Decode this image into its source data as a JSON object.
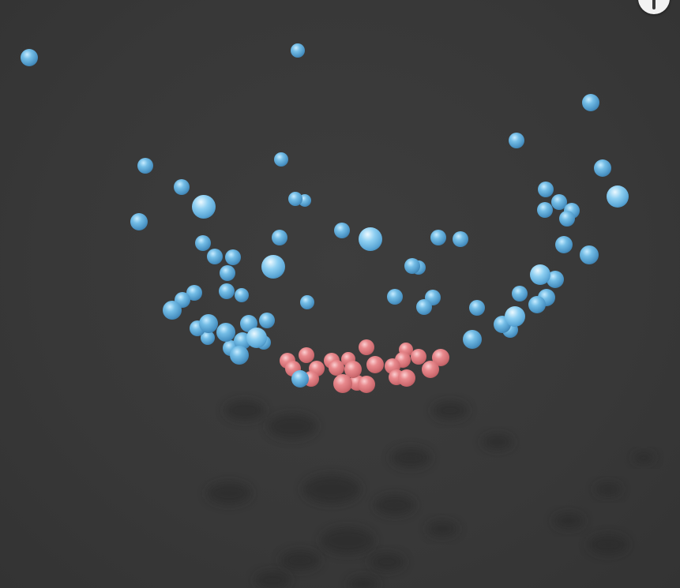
{
  "colors": {
    "background": "#3a3a3a",
    "group_a": "#6ab4e0",
    "group_b": "#e8888c"
  },
  "info_button": {
    "icon": "info-icon"
  },
  "spheres": {
    "blue": [
      [
        37,
        73,
        11
      ],
      [
        377,
        64,
        9
      ],
      [
        748,
        130,
        11
      ],
      [
        184,
        210,
        10
      ],
      [
        654,
        178,
        10
      ],
      [
        356,
        202,
        9
      ],
      [
        230,
        237,
        10
      ],
      [
        763,
        213,
        11
      ],
      [
        258,
        262,
        15
      ],
      [
        374,
        252,
        9
      ],
      [
        386,
        254,
        8
      ],
      [
        691,
        240,
        10
      ],
      [
        708,
        256,
        10
      ],
      [
        724,
        267,
        10
      ],
      [
        718,
        277,
        10
      ],
      [
        690,
        266,
        10
      ],
      [
        782,
        249,
        14
      ],
      [
        176,
        281,
        11
      ],
      [
        257,
        308,
        10
      ],
      [
        272,
        325,
        10
      ],
      [
        295,
        326,
        10
      ],
      [
        354,
        301,
        10
      ],
      [
        433,
        292,
        10
      ],
      [
        469,
        303,
        15
      ],
      [
        555,
        301,
        10
      ],
      [
        583,
        303,
        10
      ],
      [
        714,
        310,
        11
      ],
      [
        746,
        323,
        12
      ],
      [
        346,
        338,
        15
      ],
      [
        288,
        346,
        10
      ],
      [
        522,
        337,
        10
      ],
      [
        530,
        339,
        9
      ],
      [
        684,
        348,
        13
      ],
      [
        703,
        354,
        11
      ],
      [
        246,
        371,
        10
      ],
      [
        231,
        380,
        10
      ],
      [
        287,
        369,
        10
      ],
      [
        306,
        374,
        9
      ],
      [
        389,
        383,
        9
      ],
      [
        500,
        376,
        10
      ],
      [
        548,
        377,
        10
      ],
      [
        537,
        389,
        10
      ],
      [
        604,
        390,
        10
      ],
      [
        658,
        372,
        10
      ],
      [
        692,
        377,
        11
      ],
      [
        680,
        386,
        11
      ],
      [
        218,
        393,
        12
      ],
      [
        338,
        406,
        10
      ],
      [
        315,
        410,
        11
      ],
      [
        652,
        401,
        13
      ],
      [
        636,
        411,
        11
      ],
      [
        646,
        418,
        10
      ],
      [
        250,
        416,
        10
      ],
      [
        264,
        410,
        12
      ],
      [
        286,
        421,
        12
      ],
      [
        263,
        428,
        9
      ],
      [
        307,
        432,
        11
      ],
      [
        325,
        428,
        13
      ],
      [
        334,
        434,
        9
      ],
      [
        292,
        441,
        10
      ],
      [
        303,
        450,
        12
      ],
      [
        598,
        430,
        12
      ],
      [
        380,
        480,
        11
      ]
    ],
    "pink": [
      [
        464,
        440,
        10
      ],
      [
        514,
        443,
        9
      ],
      [
        388,
        450,
        10
      ],
      [
        364,
        457,
        10
      ],
      [
        420,
        457,
        10
      ],
      [
        441,
        455,
        9
      ],
      [
        475,
        462,
        11
      ],
      [
        510,
        456,
        10
      ],
      [
        530,
        452,
        10
      ],
      [
        558,
        453,
        11
      ],
      [
        371,
        467,
        10
      ],
      [
        401,
        467,
        10
      ],
      [
        426,
        466,
        10
      ],
      [
        447,
        468,
        11
      ],
      [
        497,
        464,
        10
      ],
      [
        545,
        468,
        11
      ],
      [
        394,
        480,
        10
      ],
      [
        434,
        486,
        12
      ],
      [
        452,
        485,
        10
      ],
      [
        464,
        487,
        11
      ],
      [
        502,
        478,
        10
      ],
      [
        515,
        479,
        11
      ]
    ],
    "ground_shadows": [
      [
        310,
        520,
        18
      ],
      [
        370,
        540,
        22
      ],
      [
        570,
        520,
        16
      ],
      [
        520,
        580,
        18
      ],
      [
        630,
        560,
        14
      ],
      [
        420,
        620,
        26
      ],
      [
        290,
        625,
        20
      ],
      [
        500,
        640,
        18
      ],
      [
        560,
        670,
        14
      ],
      [
        440,
        685,
        24
      ],
      [
        380,
        710,
        18
      ],
      [
        490,
        712,
        16
      ],
      [
        720,
        660,
        14
      ],
      [
        770,
        690,
        18
      ],
      [
        770,
        620,
        12
      ],
      [
        815,
        580,
        10
      ],
      [
        345,
        735,
        16
      ],
      [
        460,
        740,
        14
      ]
    ]
  }
}
